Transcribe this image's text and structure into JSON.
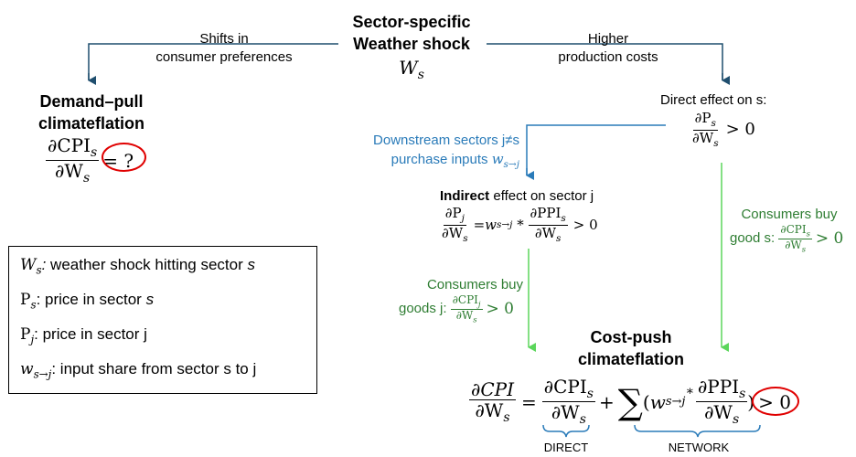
{
  "center": {
    "title_line1": "Sector-specific",
    "title_line2": "Weather shock",
    "symbol": "W",
    "symbol_sub": "s"
  },
  "left_arrow": {
    "label_line1": "Shifts in",
    "label_line2": "consumer preferences"
  },
  "right_arrow": {
    "label_line1": "Higher",
    "label_line2": "production costs"
  },
  "demand_pull": {
    "title_line1": "Demand–pull",
    "title_line2": "climateflation",
    "num": "∂CPI",
    "num_sub": "s",
    "den": "∂W",
    "den_sub": "s",
    "result": "= ?"
  },
  "direct_effect": {
    "label": "Direct effect on  s:",
    "num": "∂P",
    "num_sub": "s",
    "den": "∂W",
    "den_sub": "s",
    "result": "> 0"
  },
  "downstream": {
    "line1": "Downstream sectors j≠s",
    "line2_text": "purchase inputs ",
    "line2_symbol": "w",
    "line2_sub": "s→j"
  },
  "indirect_effect": {
    "label_bold": "Indirect",
    "label_rest": " effect on sector j",
    "lhs_num": "∂P",
    "lhs_num_sub": "j",
    "lhs_den": "∂W",
    "lhs_den_sub": "s",
    "eq": "= ",
    "w": "w",
    "w_sub": "s→j",
    "mult": " * ",
    "rhs_num": "∂PPI",
    "rhs_num_sub": "s",
    "rhs_den": "∂W",
    "rhs_den_sub": "s",
    "result": "> 0"
  },
  "consumers_s": {
    "line1": "Consumers buy",
    "line2": "good s: ",
    "num": "∂CPI",
    "num_sub": "s",
    "den": "∂W",
    "den_sub": "s",
    "result": "> 0"
  },
  "consumers_j": {
    "line1": "Consumers buy",
    "line2": "goods j: ",
    "num": "∂CPI",
    "num_sub": "j",
    "den": "∂W",
    "den_sub": "s",
    "result": "> 0"
  },
  "cost_push": {
    "title_line1": "Cost-push",
    "title_line2": "climateflation",
    "lhs_num": "∂CPI",
    "lhs_den": "∂W",
    "lhs_den_sub": "s",
    "eq": "=",
    "d_num": "∂CPI",
    "d_num_sub": "s",
    "d_den": "∂W",
    "d_den_sub": "s",
    "plus": "+",
    "sum": "∑",
    "paren_open": "(",
    "w": "w",
    "w_sub": "s→j",
    "mult": "∗",
    "n_num": "∂PPI",
    "n_num_sub": "s",
    "n_den": "∂W",
    "n_den_sub": "s",
    "paren_close": ")",
    "result": "> 0",
    "direct_label": "DIRECT",
    "network_label": "NETWORK"
  },
  "legend": {
    "items": [
      {
        "sym": "W",
        "sub": "s",
        "colon": ":",
        "text": " weather shock hitting sector ",
        "var": "s"
      },
      {
        "sym": "P",
        "sub": "s",
        "colon": ":",
        "text": " price in sector ",
        "var": "s"
      },
      {
        "sym": "P",
        "sub": "j",
        "colon": ":",
        "text": " price in sector j",
        "var": ""
      },
      {
        "sym": "w",
        "sub": "s→j",
        "colon": ":",
        "text": " input share from sector s to j",
        "var": ""
      }
    ]
  },
  "colors": {
    "dark_blue_arrow": "#1f4e6e",
    "light_blue": "#2a7bb9",
    "green": "#2e7d32",
    "light_green_arrow": "#5bd65b",
    "highlight_red": "#e00000"
  }
}
